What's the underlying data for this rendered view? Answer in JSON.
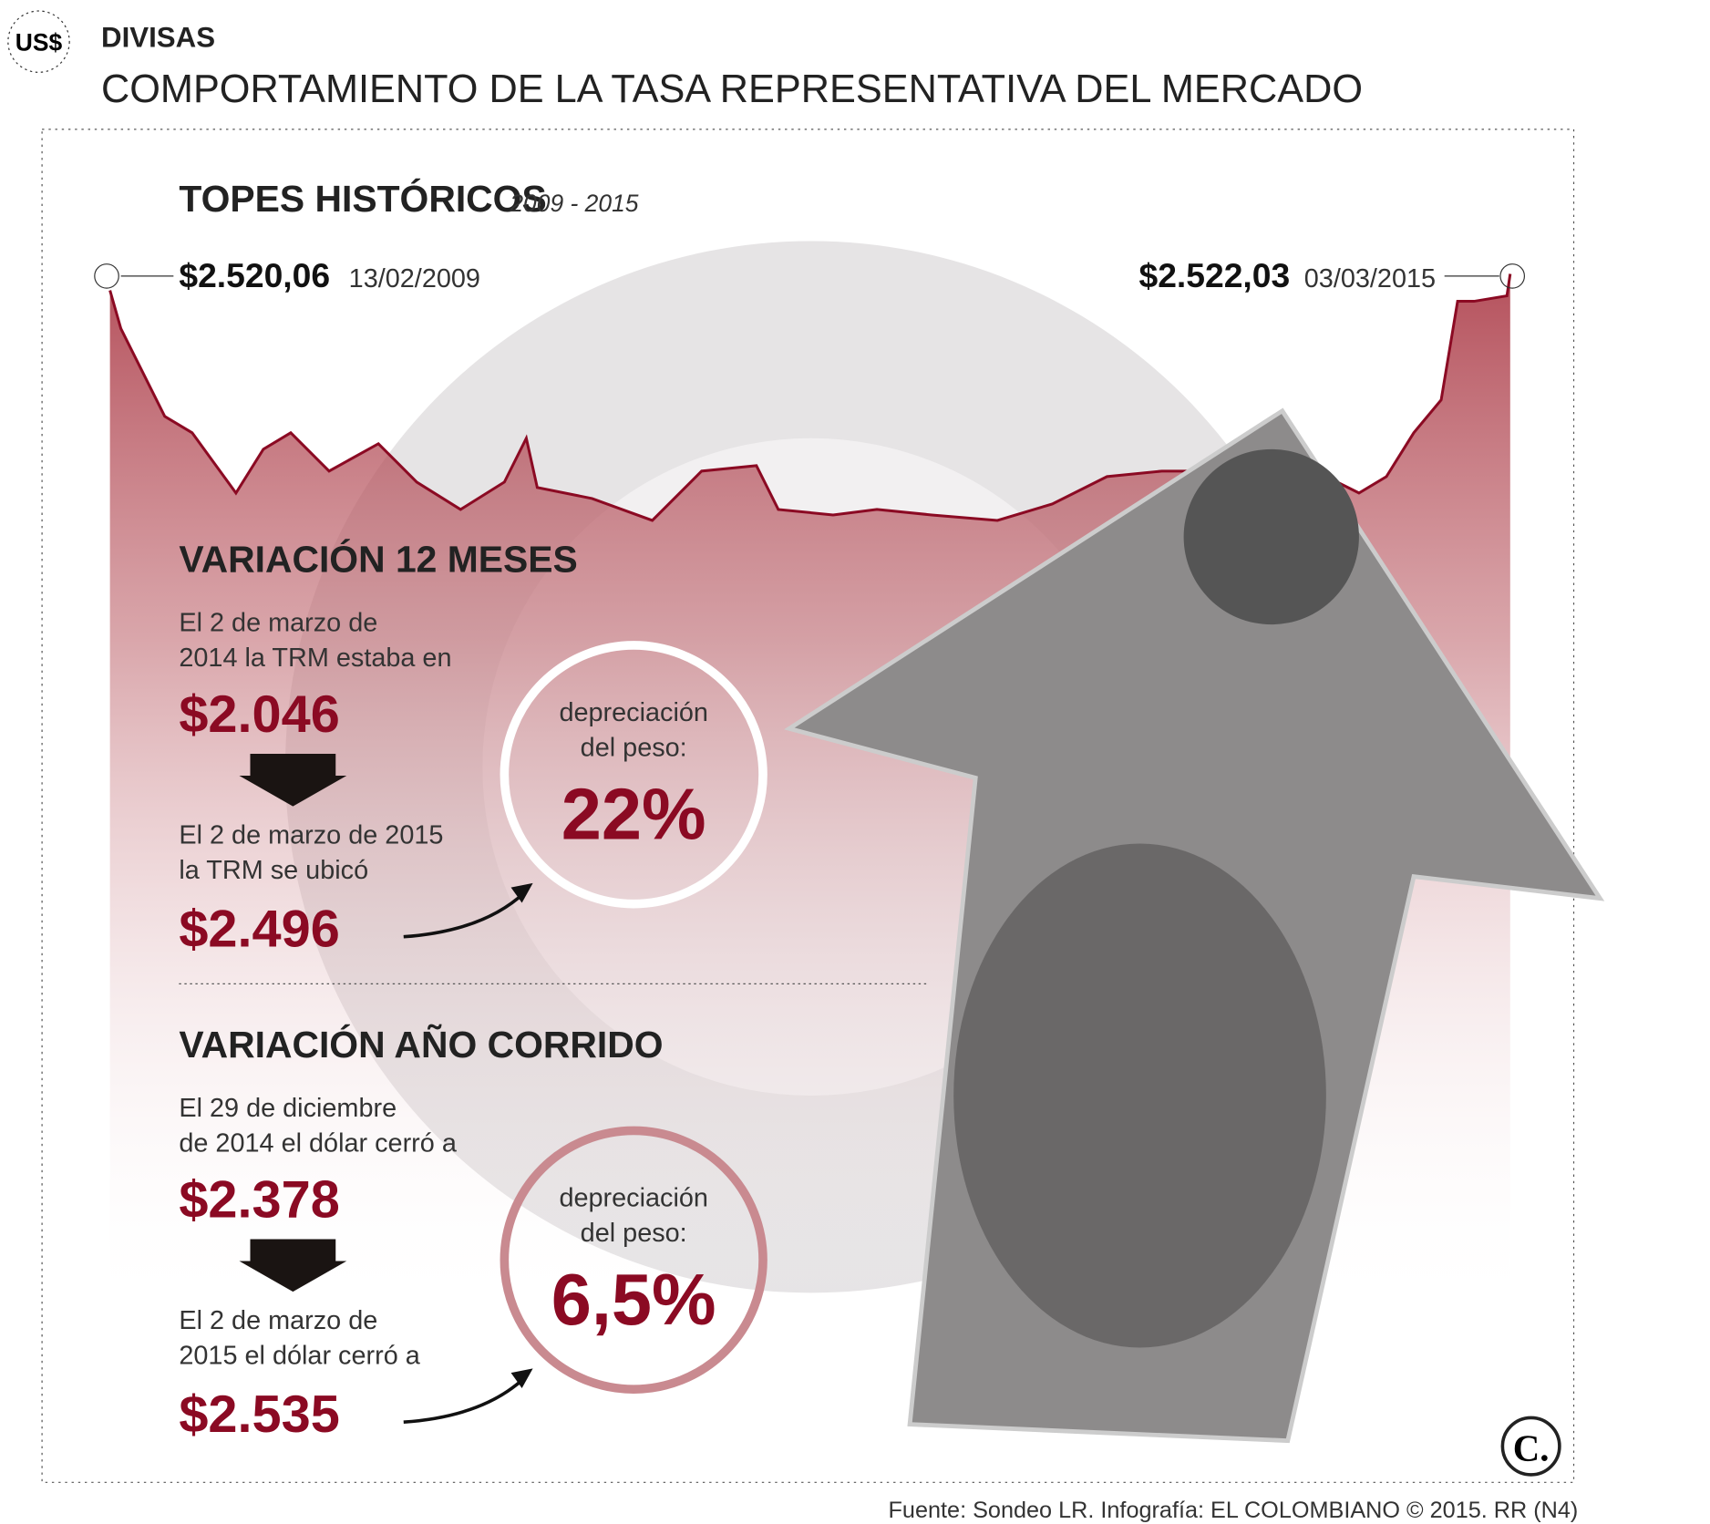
{
  "header": {
    "icon": "US$",
    "section": "DIVISAS",
    "title": "COMPORTAMIENTO DE LA TASA REPRESENTATIVA DEL MERCADO"
  },
  "historic": {
    "title": "TOPES HISTÓRICOS",
    "period": "2009 - 2015",
    "peaks": [
      {
        "value": "$2.520,06",
        "date": "13/02/2009"
      },
      {
        "value": "$2.522,03",
        "date": "03/03/2015"
      }
    ]
  },
  "sections": [
    {
      "title": "VARIACIÓN 12 MESES",
      "from_text": [
        "El 2 de marzo de",
        "2014 la TRM estaba en"
      ],
      "from_value": "$2.046",
      "to_text": [
        "El 2 de marzo de 2015",
        "la TRM se ubicó"
      ],
      "to_value": "$2.496",
      "circle_text": [
        "depreciación",
        "del peso:"
      ],
      "circle_value": "22%"
    },
    {
      "title": "VARIACIÓN AÑO CORRIDO",
      "from_text": [
        "El 29 de diciembre",
        "de 2014 el dólar cerró a"
      ],
      "from_value": "$2.378",
      "to_text": [
        "El 2 de marzo de",
        "2015 el dólar cerró a"
      ],
      "to_value": "$2.535",
      "circle_text": [
        "depreciación",
        "del peso:"
      ],
      "circle_value": "6,5%"
    }
  ],
  "logo": "C.",
  "footer": "Fuente: Sondeo LR. Infografía: EL COLOMBIANO © 2015. RR (N4)"
}
